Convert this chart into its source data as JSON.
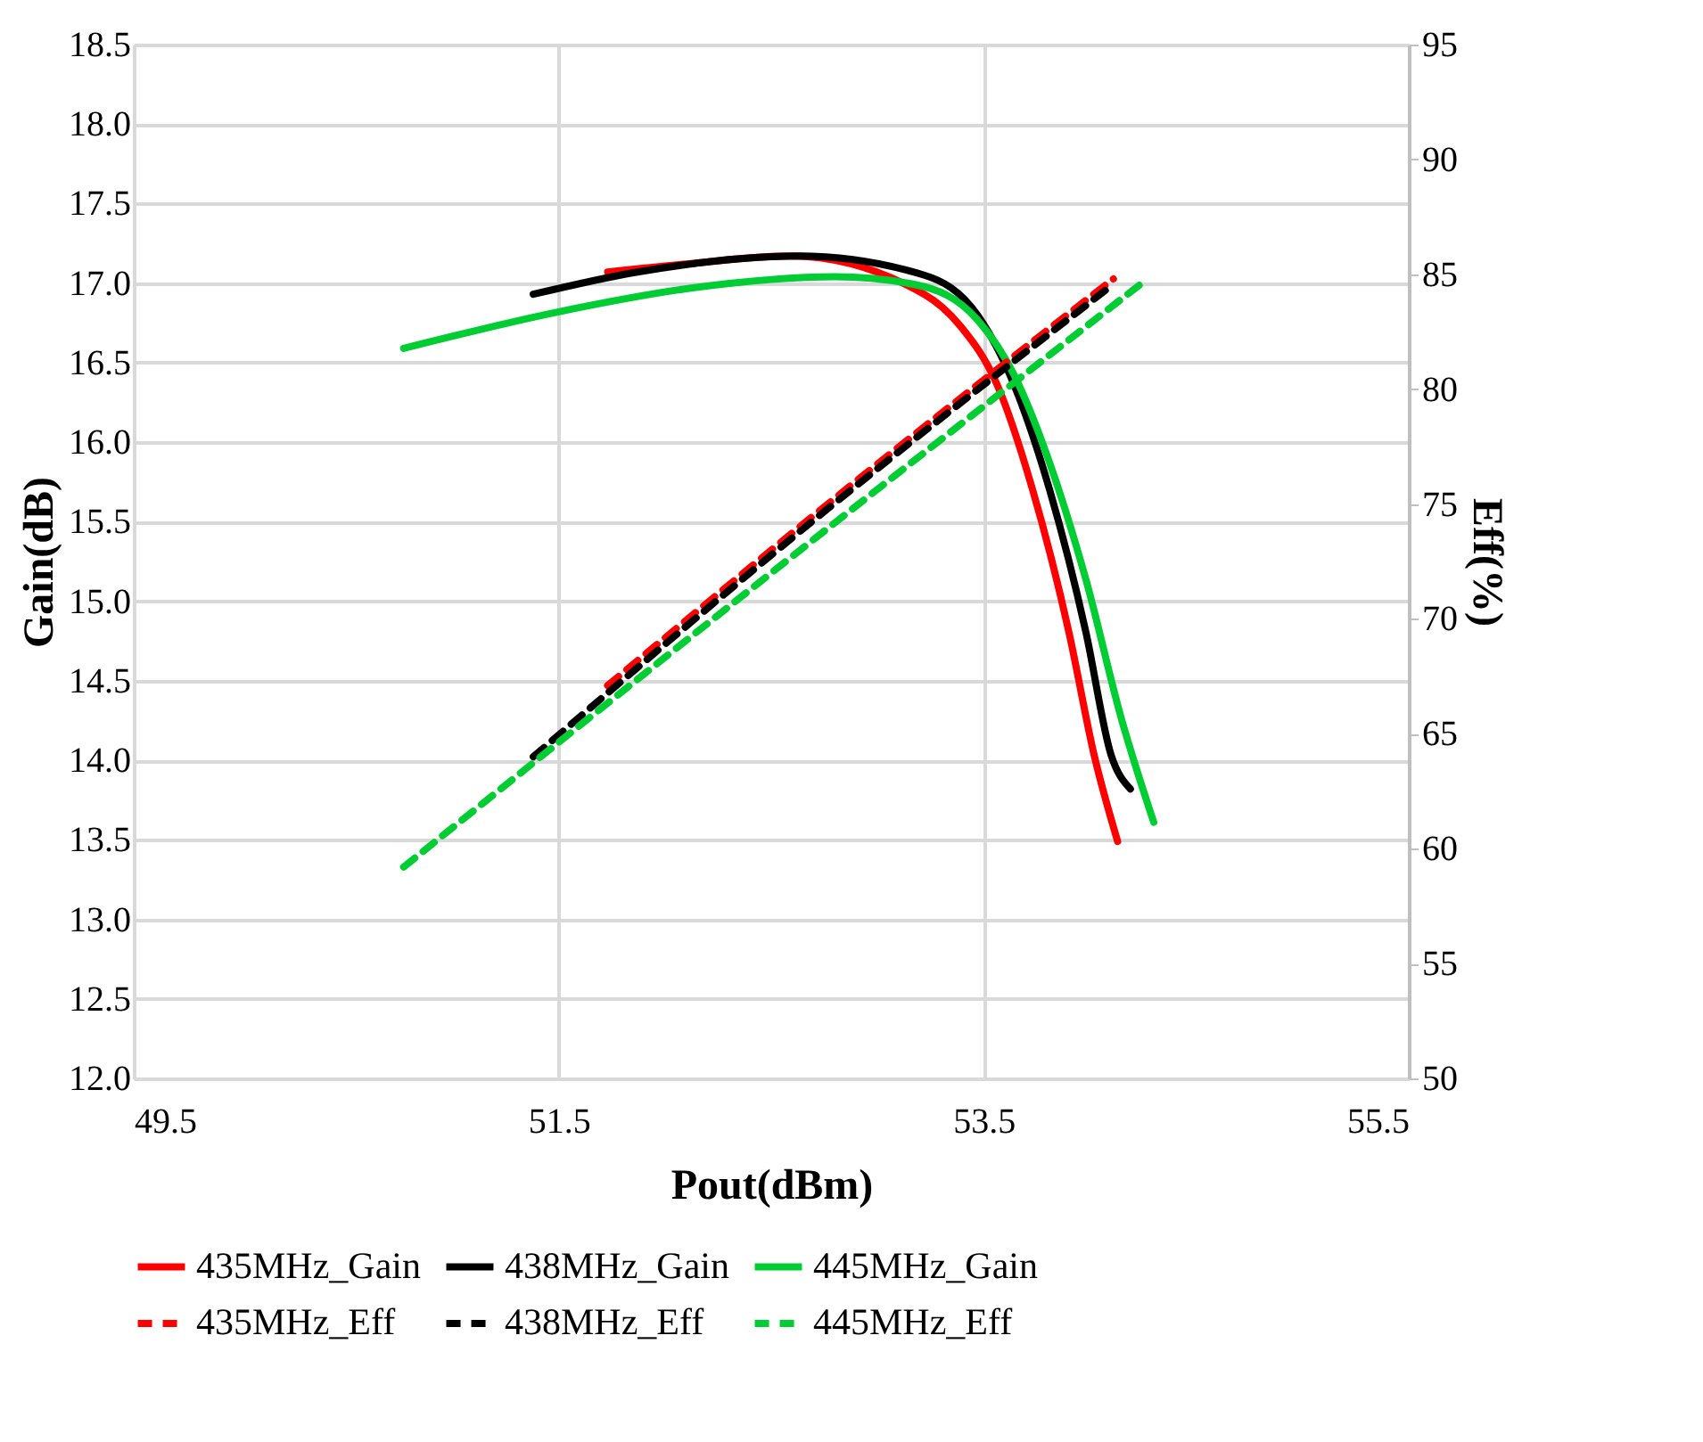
{
  "chart_data": {
    "type": "line",
    "xlabel": "Pout(dBm)",
    "ylabel": "Gain(dB)",
    "y2label": "Eff(%)",
    "xlim": [
      49.5,
      55.5
    ],
    "xticks": [
      49.5,
      51.5,
      53.5,
      55.5
    ],
    "ylim": [
      12.0,
      18.5
    ],
    "yticks": [
      {
        "value": 12,
        "label": "12.0"
      },
      12.5,
      {
        "value": 13,
        "label": "13.0"
      },
      13.5,
      {
        "value": 14,
        "label": "14.0"
      },
      14.5,
      {
        "value": 15,
        "label": "15.0"
      },
      15.5,
      {
        "value": 16,
        "label": "16.0"
      },
      16.5,
      {
        "value": 17,
        "label": "17.0"
      },
      17.5,
      {
        "value": 18,
        "label": "18.0"
      },
      18.5
    ],
    "y2lim": [
      50,
      95
    ],
    "y2ticks": [
      50,
      55,
      60,
      65,
      70,
      75,
      80,
      85,
      90,
      95
    ],
    "grid": true,
    "legend": "bottom",
    "marker": "none",
    "series": [
      {
        "name": "435MHz_Gain",
        "color": "#ff0000",
        "line_style": "solid",
        "axis": "y",
        "x": [
          51.73,
          52.1,
          52.59,
          53.22,
          53.39,
          53.56,
          53.73,
          53.9,
          54.02,
          54.13
        ],
        "values": [
          17.07,
          17.12,
          17.17,
          16.93,
          16.73,
          16.37,
          15.7,
          14.81,
          14.03,
          13.49
        ]
      },
      {
        "name": "438MHz_Gain",
        "color": "#000000",
        "line_style": "solid",
        "axis": "y",
        "x": [
          51.38,
          51.87,
          52.63,
          53.22,
          53.47,
          53.64,
          53.81,
          53.98,
          54.1,
          54.19
        ],
        "values": [
          16.93,
          17.07,
          17.17,
          17.05,
          16.8,
          16.37,
          15.7,
          14.81,
          14.03,
          13.82
        ]
      },
      {
        "name": "445MHz_Gain",
        "color": "#00cc33",
        "line_style": "solid",
        "axis": "y",
        "x": [
          50.77,
          51.5,
          52.13,
          52.8,
          53.18,
          53.47,
          53.64,
          53.81,
          53.98,
          54.15,
          54.3
        ],
        "values": [
          16.59,
          16.82,
          16.97,
          17.04,
          16.99,
          16.77,
          16.43,
          15.87,
          15.14,
          14.25,
          13.61
        ]
      },
      {
        "name": "435MHz_Eff",
        "color": "#ff0000",
        "line_style": "dashed",
        "axis": "y2",
        "x": [
          51.73,
          52.9,
          54.11
        ],
        "values": [
          67.1,
          76.0,
          84.8
        ]
      },
      {
        "name": "438MHz_Eff",
        "color": "#000000",
        "line_style": "dashed",
        "axis": "y2",
        "x": [
          51.38,
          52.7,
          54.1
        ],
        "values": [
          64.0,
          74.3,
          84.5
        ]
      },
      {
        "name": "445MHz_Eff",
        "color": "#00cc33",
        "line_style": "dashed",
        "axis": "y2",
        "x": [
          50.77,
          52.5,
          54.27
        ],
        "values": [
          59.2,
          72.0,
          84.8
        ]
      }
    ]
  }
}
